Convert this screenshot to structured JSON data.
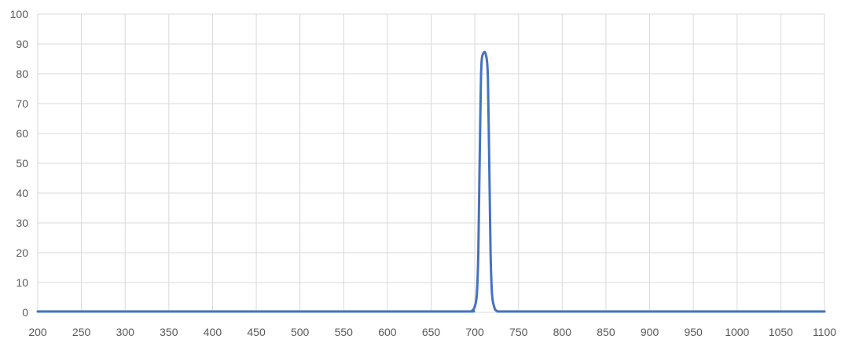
{
  "chart_data": {
    "type": "line",
    "title": "",
    "xlabel": "",
    "ylabel": "",
    "xlim": [
      200,
      1100
    ],
    "ylim": [
      0,
      100
    ],
    "x_ticks": [
      200,
      250,
      300,
      350,
      400,
      450,
      500,
      550,
      600,
      650,
      700,
      750,
      800,
      850,
      900,
      950,
      1000,
      1050,
      1100
    ],
    "x_tick_labels": [
      "200",
      "250",
      "300",
      "350",
      "400",
      "450",
      "500",
      "550",
      "600",
      "650",
      "700",
      "750",
      "800",
      "850",
      "900",
      "950",
      "1000",
      "1050",
      "1100"
    ],
    "y_ticks": [
      0,
      10,
      20,
      30,
      40,
      50,
      60,
      70,
      80,
      90,
      100
    ],
    "y_tick_labels": [
      "0",
      "10",
      "20",
      "30",
      "40",
      "50",
      "60",
      "70",
      "80",
      "90",
      "100"
    ],
    "grid": true,
    "legend": "none",
    "series": [
      {
        "color": "#4472c4",
        "x": [
          200,
          600,
          690,
          697,
          700,
          702,
          703,
          704,
          705,
          706,
          707,
          708,
          710,
          712,
          714,
          715,
          716,
          717,
          718,
          719,
          720,
          722,
          725,
          735,
          800,
          900,
          1000,
          1100
        ],
        "y": [
          0.3,
          0.3,
          0.3,
          0.6,
          2,
          5,
          10,
          20,
          40,
          60,
          78,
          85,
          87,
          87,
          84,
          78,
          60,
          40,
          20,
          10,
          5,
          2,
          0.5,
          0.3,
          0.3,
          0.3,
          0.3,
          0.3
        ]
      }
    ]
  }
}
